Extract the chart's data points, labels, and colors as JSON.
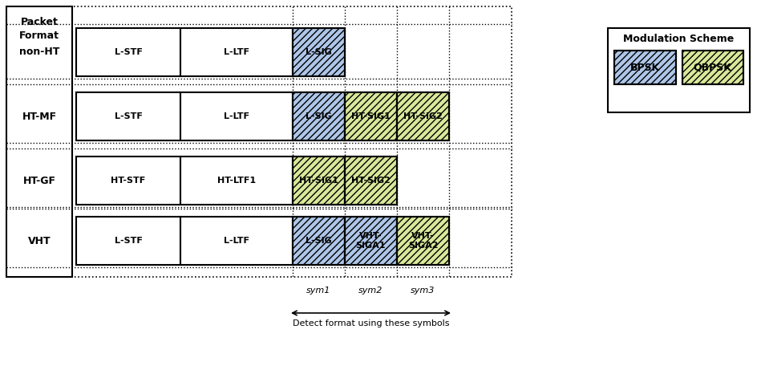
{
  "bg_color": "#ffffff",
  "bpsk_color": "#aec6e8",
  "qbpsk_color": "#d9e89a",
  "bpsk_hatch": "////",
  "qbpsk_hatch": "////",
  "rows": [
    {
      "label": "non-HT",
      "row_idx": 0,
      "boxes": [
        {
          "label": "L-STF",
          "col": 0,
          "fill": "white",
          "hatch": null
        },
        {
          "label": "L-LTF",
          "col": 1,
          "fill": "white",
          "hatch": null
        },
        {
          "label": "L-SIG",
          "col": 2,
          "fill": "bpsk",
          "hatch": "bpsk"
        }
      ]
    },
    {
      "label": "HT-MF",
      "row_idx": 1,
      "boxes": [
        {
          "label": "L-STF",
          "col": 0,
          "fill": "white",
          "hatch": null
        },
        {
          "label": "L-LTF",
          "col": 1,
          "fill": "white",
          "hatch": null
        },
        {
          "label": "L-SIG",
          "col": 2,
          "fill": "bpsk",
          "hatch": "bpsk"
        },
        {
          "label": "HT-SIG1",
          "col": 3,
          "fill": "qbpsk",
          "hatch": "qbpsk"
        },
        {
          "label": "HT-SIG2",
          "col": 4,
          "fill": "qbpsk",
          "hatch": "qbpsk"
        }
      ]
    },
    {
      "label": "HT-GF",
      "row_idx": 2,
      "boxes": [
        {
          "label": "HT-STF",
          "col": 0,
          "fill": "white",
          "hatch": null
        },
        {
          "label": "HT-LTF1",
          "col": 1,
          "fill": "white",
          "hatch": null
        },
        {
          "label": "HT-SIG1",
          "col": 2,
          "fill": "qbpsk",
          "hatch": "qbpsk"
        },
        {
          "label": "HT-SIG2",
          "col": 3,
          "fill": "qbpsk",
          "hatch": "qbpsk"
        }
      ]
    },
    {
      "label": "VHT",
      "row_idx": 3,
      "boxes": [
        {
          "label": "L-STF",
          "col": 0,
          "fill": "white",
          "hatch": null
        },
        {
          "label": "L-LTF",
          "col": 1,
          "fill": "white",
          "hatch": null
        },
        {
          "label": "L-SIG",
          "col": 2,
          "fill": "bpsk",
          "hatch": "bpsk"
        },
        {
          "label": "VHT-\nSIGA1",
          "col": 3,
          "fill": "bpsk",
          "hatch": "bpsk"
        },
        {
          "label": "VHT-\nSIGA2",
          "col": 4,
          "fill": "qbpsk",
          "hatch": "qbpsk"
        }
      ]
    }
  ],
  "sym_labels": [
    "sym1",
    "sym2",
    "sym3"
  ],
  "arrow_label": "Detect format using these symbols",
  "legend_title": "Modulation Scheme",
  "legend_bpsk": "BPSK",
  "legend_qbpsk": "QBPSK"
}
